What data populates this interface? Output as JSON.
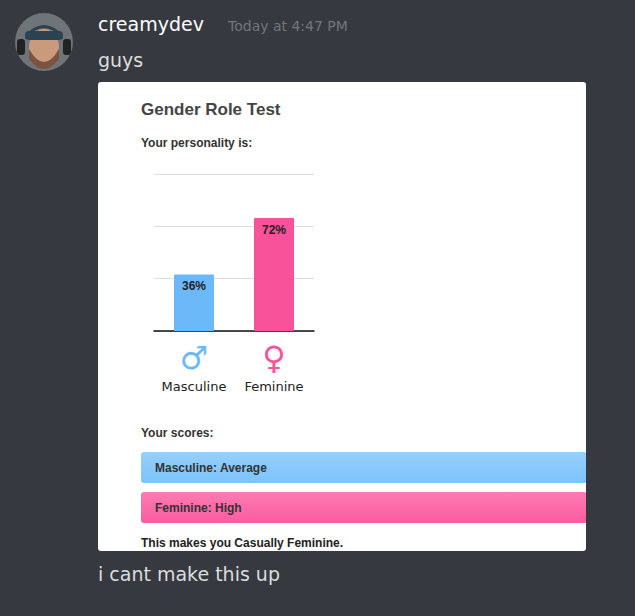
{
  "message": {
    "author": "creamydev",
    "timestamp": "Today at 4:47 PM",
    "text": "guys",
    "caption": "i cant make this up"
  },
  "chart_data": {
    "type": "bar",
    "title": "Gender Role Test",
    "subtitle": "Your personality is:",
    "categories": [
      "Masculine",
      "Feminine"
    ],
    "values": [
      36,
      72
    ],
    "value_labels": [
      "36%",
      "72%"
    ],
    "colors": [
      "#6cb9f9",
      "#f7529a"
    ],
    "ylim": [
      0,
      100
    ],
    "yticks": [
      0,
      33.33,
      66.67,
      100
    ],
    "grid": true,
    "data_labels": true,
    "tick_labels": "x"
  },
  "card": {
    "category_symbols": [
      "♂",
      "♀"
    ],
    "scores_heading": "Your scores:",
    "scores": [
      {
        "text": "Masculine: Average",
        "color": "#7cc3fb"
      },
      {
        "text": "Feminine: High",
        "color": "#fb5b9f"
      }
    ],
    "verdict": "This makes you Casually Feminine."
  }
}
